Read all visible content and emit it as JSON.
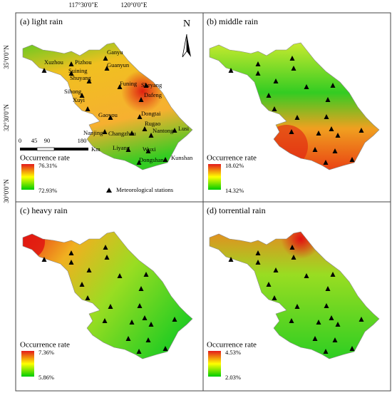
{
  "axes": {
    "top": [
      "117°30'0\"E",
      "120°0'0\"E"
    ],
    "left": [
      "35°0'0\"N",
      "32°30'0\"N",
      "30°0'0\"N"
    ]
  },
  "panels": [
    {
      "title": "(a) light rain",
      "legend_title": "Occurrence rate",
      "max": "76.31%",
      "min": "72.93%"
    },
    {
      "title": "(b) middle rain",
      "legend_title": "Occurrence rate",
      "max": "18.02%",
      "min": "14.32%"
    },
    {
      "title": "(c) heavy rain",
      "legend_title": "Occurrence rate",
      "max": "7.36%",
      "min": "5.86%"
    },
    {
      "title": "(d) torrential rain",
      "legend_title": "Occurrence rate",
      "max": "4.53%",
      "min": "2.03%"
    }
  ],
  "stations": [
    "Xuzhou",
    "Pizhou",
    "Ganyu",
    "Suining",
    "Guanyun",
    "Shuyang",
    "Funing",
    "Sheyang",
    "Dafeng",
    "Sihong",
    "Xuyi",
    "Gaoyou",
    "Dongtai",
    "Rugao",
    "Changzhou",
    "Nantong",
    "Lusi",
    "Nanjing",
    "Liyang",
    "Wuxi",
    "Kunshan",
    "Dongshan"
  ],
  "scale_bar": {
    "ticks": [
      "0",
      "45",
      "90",
      "180"
    ],
    "unit": "Km"
  },
  "north": "N",
  "station_legend": "Meteorological stations"
}
